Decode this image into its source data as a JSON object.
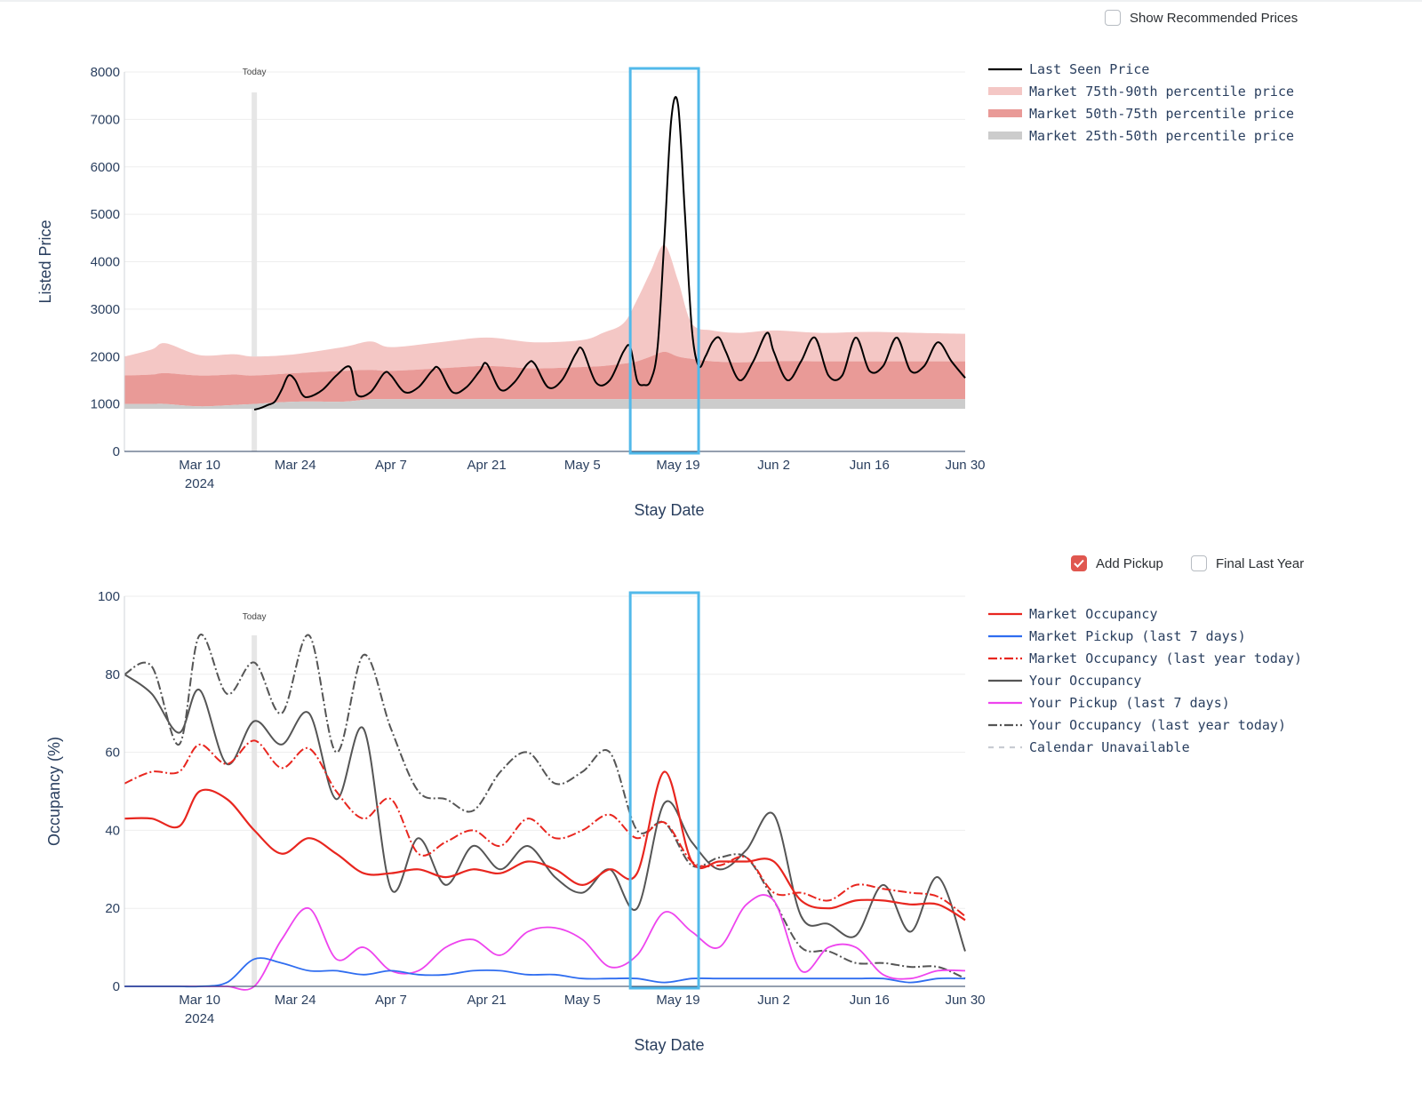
{
  "controls": {
    "show_recommended": {
      "label": "Show Recommended Prices",
      "checked": false
    },
    "add_pickup": {
      "label": "Add Pickup",
      "checked": true
    },
    "final_last_year": {
      "label": "Final Last Year",
      "checked": false
    }
  },
  "colors": {
    "p75_90": "#f4c7c5",
    "p50_75": "#e99a97",
    "p25_50": "#cccccc",
    "price": "#000000",
    "market_occ": "#e8261f",
    "market_pickup": "#2f6df0",
    "market_occ_ly": "#e8261f",
    "your_occ": "#555555",
    "your_pickup": "#ee44ee",
    "your_occ_ly": "#555555",
    "calendar_unavailable": "#c8ccd2",
    "today_bar": "#e6e6e6",
    "highlight": "#52b9ea",
    "grid": "#eeeeee",
    "axis_text": "#2a3f5f"
  },
  "chart_data": [
    {
      "type": "area",
      "today_label": "Today",
      "today_date": "2024-03-18",
      "highlight_range": [
        "2024-05-12",
        "2024-05-22"
      ],
      "xlabel": "Stay Date",
      "ylabel": "Listed Price",
      "xrange": [
        "2024-02-28",
        "2024-06-30"
      ],
      "ylim": [
        0,
        8000
      ],
      "y_ticks": [
        0,
        1000,
        2000,
        3000,
        4000,
        5000,
        6000,
        7000,
        8000
      ],
      "x_ticks": [
        "Mar 10",
        "Mar 24",
        "Apr 7",
        "Apr 21",
        "May 5",
        "May 19",
        "Jun 2",
        "Jun 16",
        "Jun 30"
      ],
      "x_tick_dates": [
        "2024-03-10",
        "2024-03-24",
        "2024-04-07",
        "2024-04-21",
        "2024-05-05",
        "2024-05-19",
        "2024-06-02",
        "2024-06-16",
        "2024-06-30"
      ],
      "x_year_label": "2024",
      "legend_position": "right",
      "x_dates": [
        "2024-02-28",
        "2024-03-03",
        "2024-03-05",
        "2024-03-10",
        "2024-03-15",
        "2024-03-18",
        "2024-03-24",
        "2024-03-31",
        "2024-04-04",
        "2024-04-07",
        "2024-04-14",
        "2024-04-21",
        "2024-04-28",
        "2024-05-05",
        "2024-05-08",
        "2024-05-11",
        "2024-05-13",
        "2024-05-15",
        "2024-05-17",
        "2024-05-19",
        "2024-05-21",
        "2024-05-24",
        "2024-05-28",
        "2024-06-02",
        "2024-06-09",
        "2024-06-16",
        "2024-06-23",
        "2024-06-30"
      ],
      "series": [
        {
          "name": "Market 75th-90th percentile price",
          "values": [
            2000,
            2150,
            2280,
            2030,
            2050,
            2000,
            2050,
            2200,
            2320,
            2200,
            2300,
            2400,
            2300,
            2350,
            2500,
            2700,
            3200,
            3800,
            4350,
            3600,
            2700,
            2550,
            2500,
            2550,
            2500,
            2520,
            2500,
            2480
          ]
        },
        {
          "name": "Market 50th-75th percentile price",
          "values": [
            1600,
            1620,
            1650,
            1600,
            1620,
            1600,
            1650,
            1700,
            1720,
            1700,
            1750,
            1800,
            1750,
            1780,
            1800,
            1850,
            1900,
            2000,
            2100,
            2000,
            1950,
            1900,
            1880,
            1900,
            1900,
            1900,
            1900,
            1900
          ]
        },
        {
          "name": "Market 25th-50th percentile price",
          "values": [
            1000,
            1000,
            1000,
            950,
            980,
            1000,
            1050,
            1050,
            1100,
            1100,
            1100,
            1100,
            1100,
            1100,
            1100,
            1100,
            1100,
            1100,
            1100,
            1100,
            1100,
            1100,
            1100,
            1100,
            1100,
            1100,
            1100,
            1100
          ]
        },
        {
          "name": "Last Seen Price",
          "x": [
            "2024-03-18",
            "2024-03-19",
            "2024-03-20",
            "2024-03-21",
            "2024-03-22",
            "2024-03-23",
            "2024-03-24",
            "2024-03-25",
            "2024-03-26",
            "2024-03-28",
            "2024-03-30",
            "2024-04-01",
            "2024-04-02",
            "2024-04-04",
            "2024-04-06",
            "2024-04-07",
            "2024-04-09",
            "2024-04-11",
            "2024-04-13",
            "2024-04-14",
            "2024-04-16",
            "2024-04-18",
            "2024-04-20",
            "2024-04-21",
            "2024-04-23",
            "2024-04-25",
            "2024-04-27",
            "2024-04-28",
            "2024-04-30",
            "2024-05-02",
            "2024-05-04",
            "2024-05-05",
            "2024-05-07",
            "2024-05-09",
            "2024-05-11",
            "2024-05-12",
            "2024-05-13",
            "2024-05-14",
            "2024-05-15",
            "2024-05-16",
            "2024-05-17",
            "2024-05-18",
            "2024-05-19",
            "2024-05-20",
            "2024-05-21",
            "2024-05-22",
            "2024-05-23",
            "2024-05-24",
            "2024-05-25",
            "2024-05-26",
            "2024-05-28",
            "2024-05-30",
            "2024-06-01",
            "2024-06-02",
            "2024-06-04",
            "2024-06-06",
            "2024-06-08",
            "2024-06-10",
            "2024-06-12",
            "2024-06-14",
            "2024-06-16",
            "2024-06-18",
            "2024-06-20",
            "2024-06-22",
            "2024-06-24",
            "2024-06-26",
            "2024-06-28",
            "2024-06-30"
          ],
          "values": [
            880,
            920,
            980,
            1050,
            1300,
            1600,
            1500,
            1200,
            1150,
            1300,
            1600,
            1780,
            1200,
            1250,
            1650,
            1600,
            1250,
            1350,
            1700,
            1750,
            1250,
            1350,
            1700,
            1850,
            1300,
            1450,
            1850,
            1850,
            1350,
            1500,
            2050,
            2150,
            1450,
            1500,
            2100,
            2200,
            1500,
            1400,
            1500,
            2200,
            4500,
            7000,
            7300,
            5000,
            2600,
            1800,
            2000,
            2300,
            2400,
            2100,
            1500,
            1900,
            2500,
            2100,
            1500,
            1900,
            2400,
            1600,
            1600,
            2400,
            1700,
            1800,
            2400,
            1700,
            1800,
            2300,
            1900,
            1550
          ]
        }
      ]
    },
    {
      "type": "line",
      "today_label": "Today",
      "today_date": "2024-03-18",
      "highlight_range": [
        "2024-05-12",
        "2024-05-22"
      ],
      "xlabel": "Stay Date",
      "ylabel": "Occupancy (%)",
      "xrange": [
        "2024-02-28",
        "2024-06-30"
      ],
      "ylim": [
        0,
        100
      ],
      "y_ticks": [
        0,
        20,
        40,
        60,
        80,
        100
      ],
      "x_ticks": [
        "Mar 10",
        "Mar 24",
        "Apr 7",
        "Apr 21",
        "May 5",
        "May 19",
        "Jun 2",
        "Jun 16",
        "Jun 30"
      ],
      "x_tick_dates": [
        "2024-03-10",
        "2024-03-24",
        "2024-04-07",
        "2024-04-21",
        "2024-05-05",
        "2024-05-19",
        "2024-06-02",
        "2024-06-16",
        "2024-06-30"
      ],
      "x_year_label": "2024",
      "legend_position": "right",
      "x_dates": [
        "2024-02-28",
        "2024-03-03",
        "2024-03-07",
        "2024-03-10",
        "2024-03-14",
        "2024-03-18",
        "2024-03-22",
        "2024-03-26",
        "2024-03-30",
        "2024-04-03",
        "2024-04-07",
        "2024-04-11",
        "2024-04-15",
        "2024-04-19",
        "2024-04-23",
        "2024-04-27",
        "2024-05-01",
        "2024-05-05",
        "2024-05-09",
        "2024-05-13",
        "2024-05-17",
        "2024-05-21",
        "2024-05-25",
        "2024-05-29",
        "2024-06-02",
        "2024-06-06",
        "2024-06-10",
        "2024-06-14",
        "2024-06-18",
        "2024-06-22",
        "2024-06-26",
        "2024-06-30"
      ],
      "series": [
        {
          "name": "Market Occupancy",
          "values": [
            43,
            43,
            41,
            50,
            48,
            40,
            34,
            38,
            34,
            29,
            29,
            30,
            28,
            30,
            29,
            32,
            30,
            26,
            30,
            29,
            55,
            32,
            32,
            32,
            32,
            22,
            20,
            22,
            22,
            21,
            21,
            17
          ]
        },
        {
          "name": "Market Pickup (last 7 days)",
          "values": [
            0,
            0,
            0,
            0,
            1,
            7,
            6,
            4,
            4,
            3,
            4,
            3,
            3,
            4,
            4,
            3,
            3,
            2,
            2,
            2,
            1,
            2,
            2,
            2,
            2,
            2,
            2,
            2,
            2,
            1,
            2,
            2
          ]
        },
        {
          "name": "Market Occupancy (last year today)",
          "values": [
            52,
            55,
            55,
            62,
            57,
            63,
            56,
            61,
            50,
            43,
            48,
            34,
            37,
            40,
            36,
            43,
            38,
            40,
            44,
            38,
            42,
            32,
            31,
            33,
            24,
            24,
            22,
            26,
            25,
            24,
            23,
            18
          ]
        },
        {
          "name": "Your Occupancy",
          "values": [
            80,
            75,
            65,
            76,
            57,
            68,
            62,
            70,
            48,
            66,
            25,
            38,
            26,
            36,
            30,
            36,
            28,
            24,
            30,
            20,
            47,
            37,
            30,
            35,
            44,
            18,
            16,
            13,
            26,
            14,
            28,
            9
          ]
        },
        {
          "name": "Your Pickup (last 7 days)",
          "values": [
            0,
            0,
            0,
            0,
            0,
            0,
            12,
            20,
            7,
            10,
            4,
            4,
            10,
            12,
            8,
            14,
            15,
            12,
            5,
            8,
            19,
            14,
            10,
            21,
            22,
            4,
            10,
            10,
            3,
            2,
            4,
            4
          ]
        },
        {
          "name": "Your Occupancy (last year today)",
          "values": [
            80,
            82,
            62,
            90,
            75,
            83,
            70,
            90,
            60,
            85,
            66,
            50,
            48,
            45,
            55,
            60,
            52,
            55,
            60,
            40,
            42,
            31,
            33,
            33,
            22,
            10,
            9,
            6,
            6,
            5,
            5,
            2
          ]
        },
        {
          "name": "Calendar Unavailable",
          "values": []
        }
      ]
    }
  ]
}
